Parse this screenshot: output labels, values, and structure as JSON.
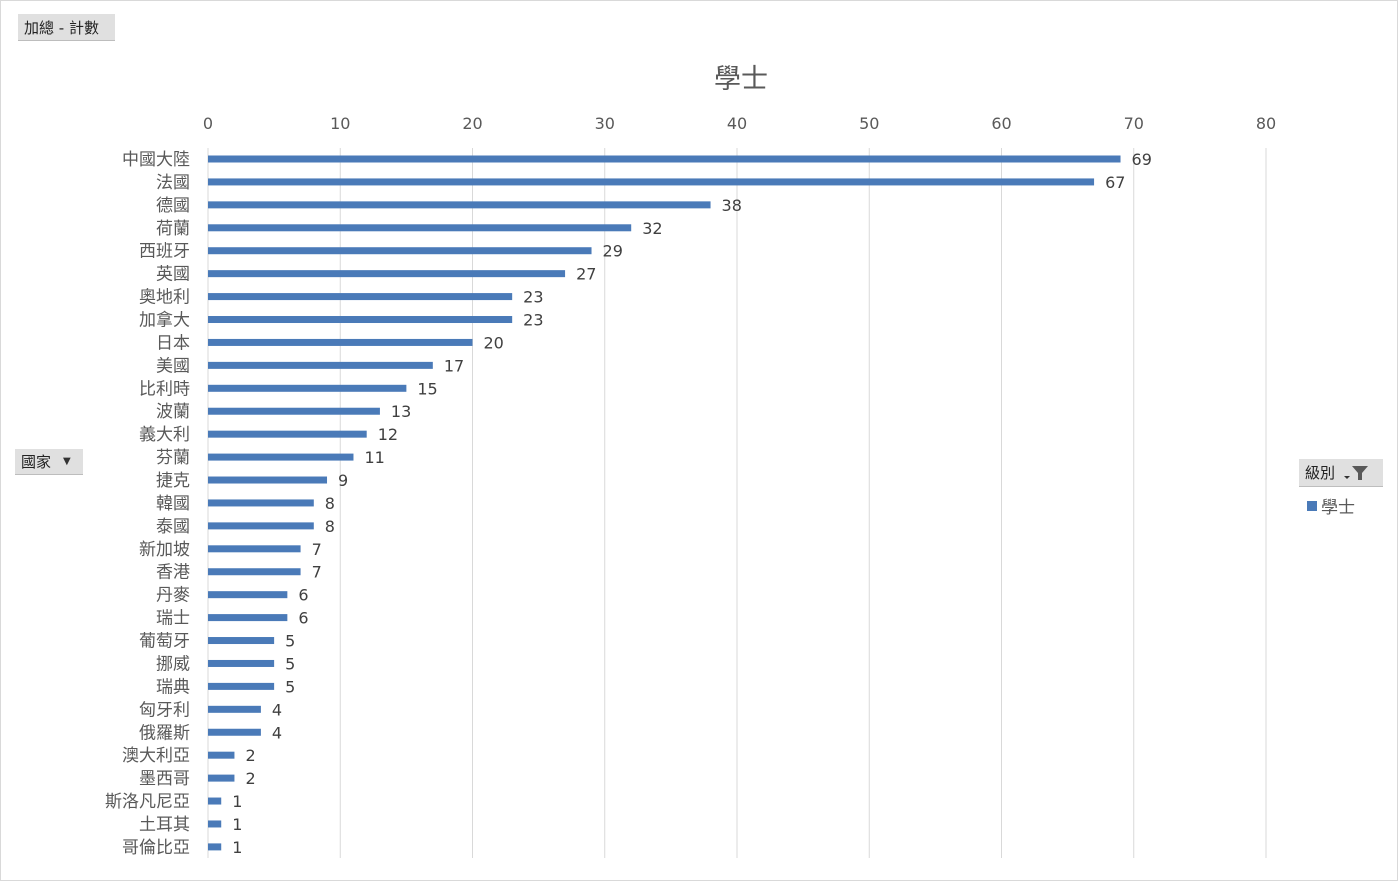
{
  "pivot": {
    "values_field": "加總 - 計數",
    "axis_field": "國家",
    "legend_field": "級別"
  },
  "chart_data": {
    "type": "bar",
    "orientation": "horizontal",
    "title": "學士",
    "xlim": [
      0,
      80
    ],
    "xticks": [
      0,
      10,
      20,
      30,
      40,
      50,
      60,
      70,
      80
    ],
    "grid": true,
    "legend_position": "right",
    "series": [
      {
        "name": "學士",
        "color": "#4a7ab8"
      }
    ],
    "categories": [
      "中國大陸",
      "法國",
      "德國",
      "荷蘭",
      "西班牙",
      "英國",
      "奧地利",
      "加拿大",
      "日本",
      "美國",
      "比利時",
      "波蘭",
      "義大利",
      "芬蘭",
      "捷克",
      "韓國",
      "泰國",
      "新加坡",
      "香港",
      "丹麥",
      "瑞士",
      "葡萄牙",
      "挪威",
      "瑞典",
      "匈牙利",
      "俄羅斯",
      "澳大利亞",
      "墨西哥",
      "斯洛凡尼亞",
      "土耳其",
      "哥倫比亞"
    ],
    "values": [
      69,
      67,
      38,
      32,
      29,
      27,
      23,
      23,
      20,
      17,
      15,
      13,
      12,
      11,
      9,
      8,
      8,
      7,
      7,
      6,
      6,
      5,
      5,
      5,
      4,
      4,
      2,
      2,
      1,
      1,
      1
    ]
  }
}
